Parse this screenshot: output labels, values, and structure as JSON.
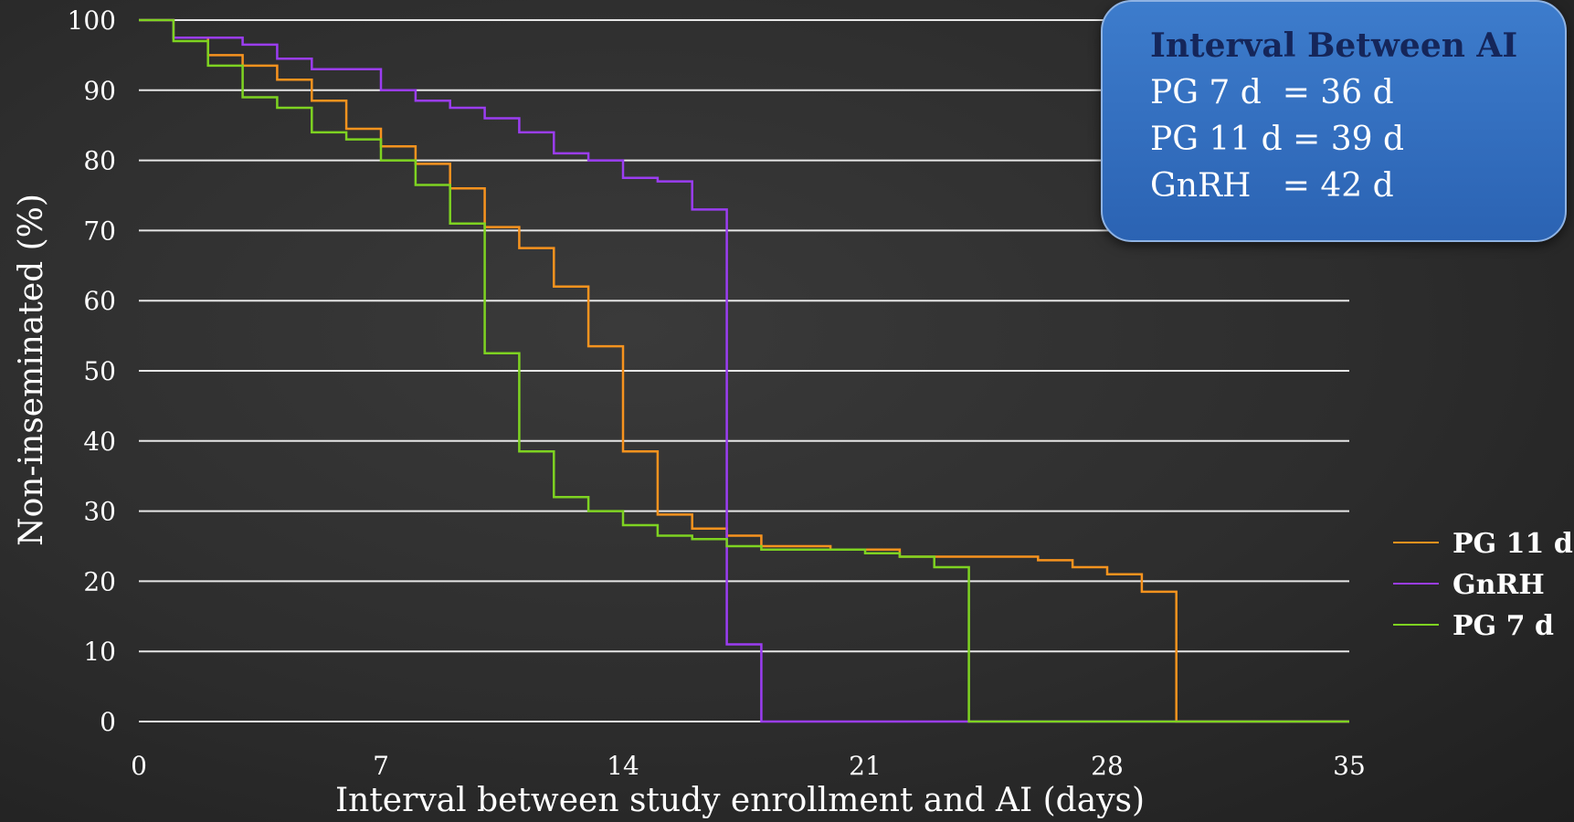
{
  "chart_data": {
    "type": "line",
    "step": true,
    "xlabel": "Interval between study enrollment and AI (days)",
    "ylabel": "Non-inseminated (%)",
    "xlim": [
      0,
      35
    ],
    "ylim": [
      0,
      100
    ],
    "xticks": [
      0,
      7,
      14,
      21,
      28,
      35
    ],
    "yticks": [
      0,
      10,
      20,
      30,
      40,
      50,
      60,
      70,
      80,
      90,
      100
    ],
    "grid": "horizontal",
    "legend_position": "right",
    "series": [
      {
        "name": "PG 11 d",
        "color": "#f7931e",
        "points": [
          [
            0,
            100
          ],
          [
            1,
            100
          ],
          [
            1,
            97.5
          ],
          [
            2,
            97.5
          ],
          [
            2,
            95
          ],
          [
            3,
            95
          ],
          [
            3,
            93.5
          ],
          [
            4,
            93.5
          ],
          [
            4,
            91.5
          ],
          [
            5,
            91.5
          ],
          [
            5,
            88.5
          ],
          [
            6,
            88.5
          ],
          [
            6,
            84.5
          ],
          [
            7,
            84.5
          ],
          [
            7,
            82
          ],
          [
            8,
            82
          ],
          [
            8,
            79.5
          ],
          [
            9,
            79.5
          ],
          [
            9,
            76
          ],
          [
            10,
            76
          ],
          [
            10,
            70.5
          ],
          [
            11,
            70.5
          ],
          [
            11,
            67.5
          ],
          [
            12,
            67.5
          ],
          [
            12,
            62
          ],
          [
            13,
            62
          ],
          [
            13,
            53.5
          ],
          [
            14,
            53.5
          ],
          [
            14,
            38.5
          ],
          [
            15,
            38.5
          ],
          [
            15,
            29.5
          ],
          [
            16,
            29.5
          ],
          [
            16,
            27.5
          ],
          [
            17,
            27.5
          ],
          [
            17,
            26.5
          ],
          [
            18,
            26.5
          ],
          [
            18,
            25
          ],
          [
            20,
            25
          ],
          [
            20,
            24.5
          ],
          [
            22,
            24.5
          ],
          [
            22,
            23.5
          ],
          [
            26,
            23.5
          ],
          [
            26,
            23
          ],
          [
            27,
            23
          ],
          [
            27,
            22
          ],
          [
            28,
            22
          ],
          [
            28,
            21
          ],
          [
            29,
            21
          ],
          [
            29,
            18.5
          ],
          [
            30,
            18.5
          ],
          [
            30,
            0
          ],
          [
            35,
            0
          ]
        ]
      },
      {
        "name": "GnRH",
        "color": "#9b3df2",
        "points": [
          [
            0,
            100
          ],
          [
            1,
            100
          ],
          [
            1,
            97.5
          ],
          [
            3,
            97.5
          ],
          [
            3,
            96.5
          ],
          [
            4,
            96.5
          ],
          [
            4,
            94.5
          ],
          [
            5,
            94.5
          ],
          [
            5,
            93
          ],
          [
            7,
            93
          ],
          [
            7,
            90
          ],
          [
            8,
            90
          ],
          [
            8,
            88.5
          ],
          [
            9,
            88.5
          ],
          [
            9,
            87.5
          ],
          [
            10,
            87.5
          ],
          [
            10,
            86
          ],
          [
            11,
            86
          ],
          [
            11,
            84
          ],
          [
            12,
            84
          ],
          [
            12,
            81
          ],
          [
            13,
            81
          ],
          [
            13,
            80
          ],
          [
            14,
            80
          ],
          [
            14,
            77.5
          ],
          [
            15,
            77.5
          ],
          [
            15,
            77
          ],
          [
            16,
            77
          ],
          [
            16,
            73
          ],
          [
            17,
            73
          ],
          [
            17,
            11
          ],
          [
            18,
            11
          ],
          [
            18,
            0
          ],
          [
            35,
            0
          ]
        ]
      },
      {
        "name": "PG 7 d",
        "color": "#7ed321",
        "points": [
          [
            0,
            100
          ],
          [
            1,
            100
          ],
          [
            1,
            97
          ],
          [
            2,
            97
          ],
          [
            2,
            93.5
          ],
          [
            3,
            93.5
          ],
          [
            3,
            89
          ],
          [
            4,
            89
          ],
          [
            4,
            87.5
          ],
          [
            5,
            87.5
          ],
          [
            5,
            84
          ],
          [
            6,
            84
          ],
          [
            6,
            83
          ],
          [
            7,
            83
          ],
          [
            7,
            80
          ],
          [
            8,
            80
          ],
          [
            8,
            76.5
          ],
          [
            9,
            76.5
          ],
          [
            9,
            71
          ],
          [
            10,
            71
          ],
          [
            10,
            52.5
          ],
          [
            11,
            52.5
          ],
          [
            11,
            38.5
          ],
          [
            12,
            38.5
          ],
          [
            12,
            32
          ],
          [
            13,
            32
          ],
          [
            13,
            30
          ],
          [
            14,
            30
          ],
          [
            14,
            28
          ],
          [
            15,
            28
          ],
          [
            15,
            26.5
          ],
          [
            16,
            26.5
          ],
          [
            16,
            26
          ],
          [
            17,
            26
          ],
          [
            17,
            25
          ],
          [
            18,
            25
          ],
          [
            18,
            24.5
          ],
          [
            21,
            24.5
          ],
          [
            21,
            24
          ],
          [
            22,
            24
          ],
          [
            22,
            23.5
          ],
          [
            23,
            23.5
          ],
          [
            23,
            22
          ],
          [
            24,
            22
          ],
          [
            24,
            0
          ],
          [
            35,
            0
          ]
        ]
      }
    ],
    "legend": [
      "PG 11 d",
      "GnRH",
      "PG 7 d"
    ]
  },
  "info_box": {
    "title": "Interval Between AI",
    "lines": [
      "PG 7 d  = 36 d",
      "PG 11 d = 39 d",
      "GnRH   = 42 d"
    ]
  }
}
